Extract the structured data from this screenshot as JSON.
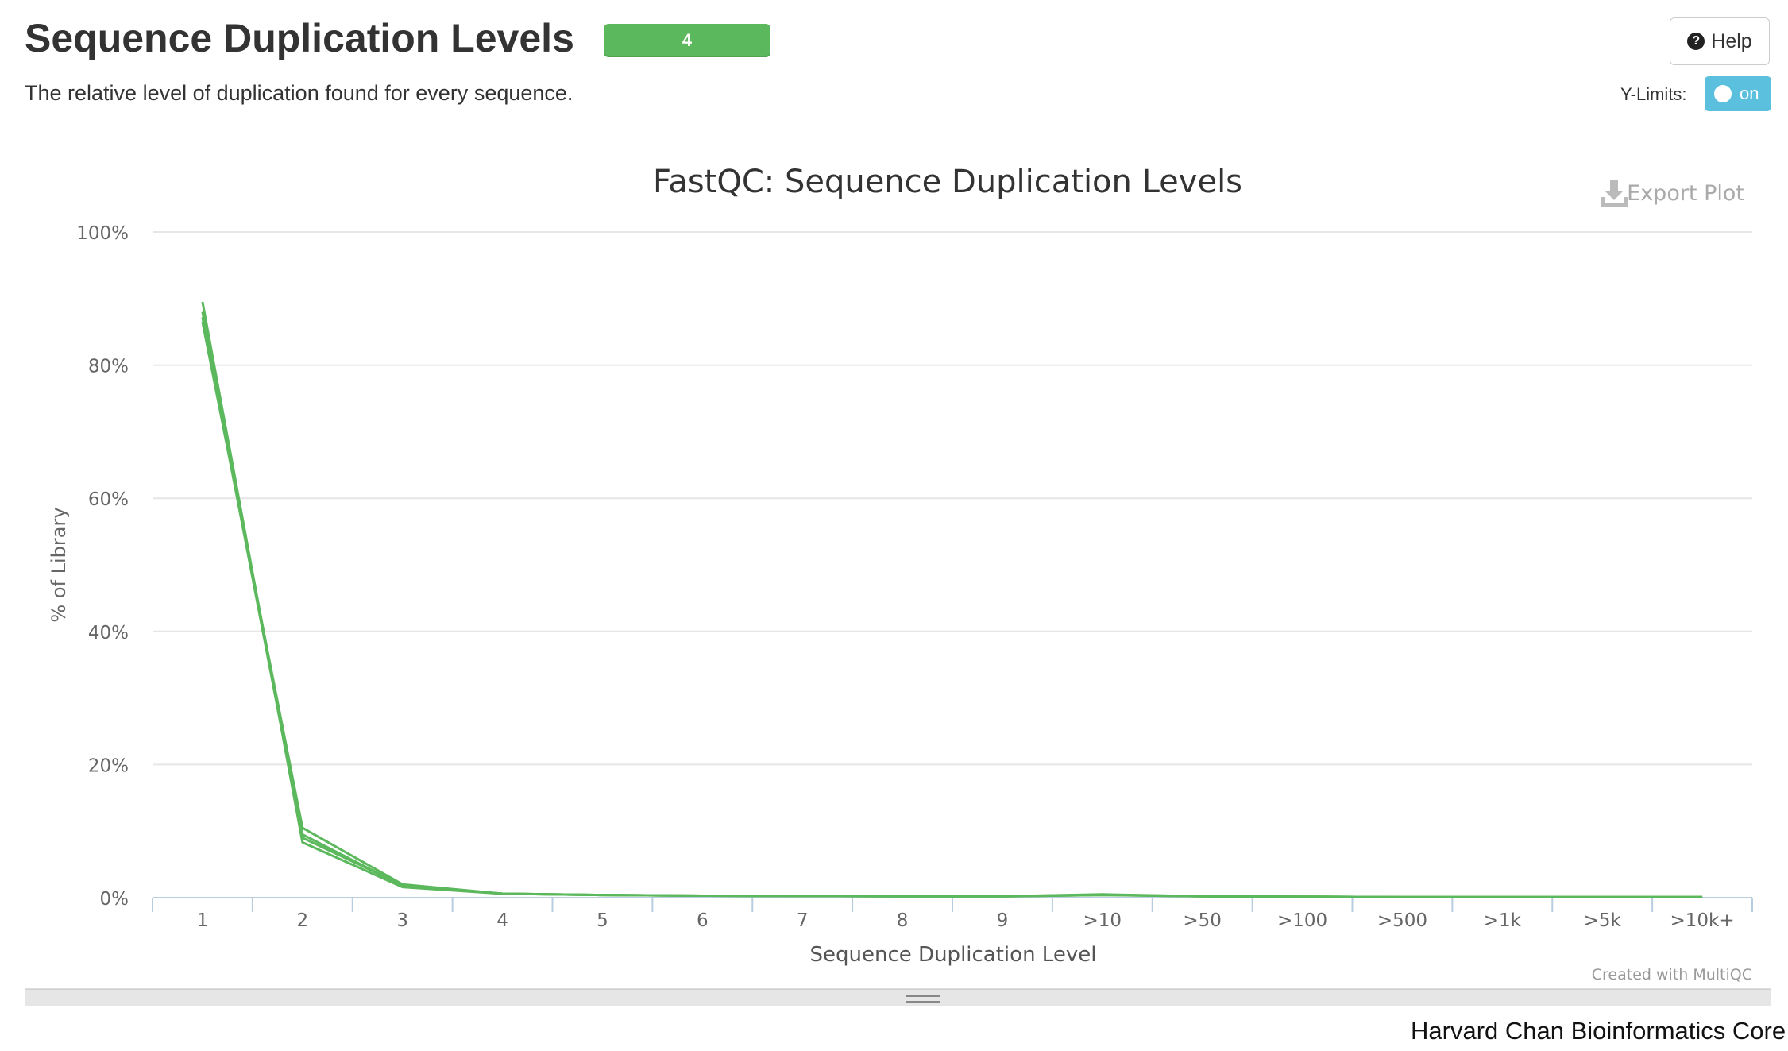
{
  "header": {
    "title": "Sequence Duplication Levels",
    "badge": "4",
    "subtitle": "The relative level of duplication found for every sequence.",
    "help_label": "Help",
    "ylimits_label": "Y-Limits:",
    "ylimits_toggle": "on"
  },
  "plot": {
    "export_label": "Export Plot",
    "credit": "Created with MultiQC"
  },
  "watermark": "Harvard Chan Bioinformatics Core",
  "colors": {
    "series": "#5cb85c",
    "badge": "#5cb85c",
    "toggle": "#5bc0de"
  },
  "chart_data": {
    "type": "line",
    "title": "FastQC: Sequence Duplication Levels",
    "xlabel": "Sequence Duplication Level",
    "ylabel": "% of Library",
    "categories": [
      "1",
      "2",
      "3",
      "4",
      "5",
      "6",
      "7",
      "8",
      "9",
      ">10",
      ">50",
      ">100",
      ">500",
      ">1k",
      ">5k",
      ">10k+"
    ],
    "ylim": [
      0,
      100
    ],
    "yticks": [
      "0%",
      "20%",
      "40%",
      "60%",
      "80%",
      "100%"
    ],
    "ytick_values": [
      0,
      20,
      40,
      60,
      80,
      100
    ],
    "grid": true,
    "legend": "none",
    "series": [
      {
        "values": [
          89.5,
          8.3,
          1.6,
          0.6,
          0.4,
          0.3,
          0.25,
          0.2,
          0.2,
          0.4,
          0.2,
          0.15,
          0.1,
          0.1,
          0.1,
          0.1
        ]
      },
      {
        "values": [
          86.5,
          10.5,
          2.0,
          0.6,
          0.4,
          0.3,
          0.25,
          0.2,
          0.2,
          0.5,
          0.2,
          0.15,
          0.1,
          0.1,
          0.1,
          0.1
        ]
      },
      {
        "values": [
          88.0,
          9.5,
          1.8,
          0.6,
          0.4,
          0.3,
          0.25,
          0.2,
          0.2,
          0.45,
          0.2,
          0.15,
          0.1,
          0.1,
          0.1,
          0.1
        ]
      },
      {
        "values": [
          87.2,
          9.0,
          1.9,
          0.6,
          0.4,
          0.3,
          0.25,
          0.2,
          0.2,
          0.4,
          0.2,
          0.15,
          0.1,
          0.1,
          0.1,
          0.1
        ]
      }
    ]
  }
}
